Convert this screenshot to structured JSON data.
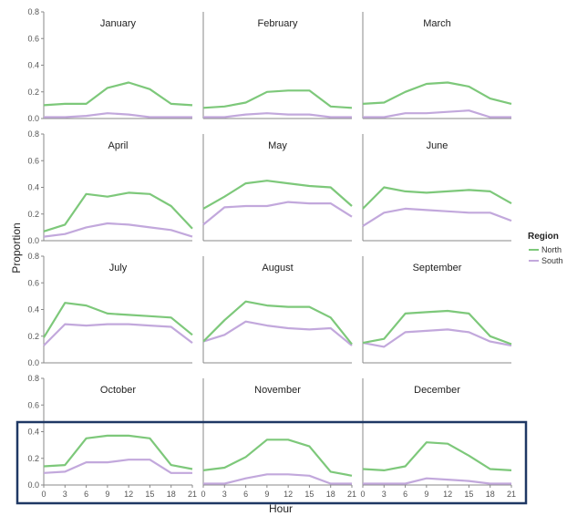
{
  "chart_data": {
    "type": "line",
    "xlabel": "Hour",
    "ylabel": "Proportion",
    "x": [
      0,
      3,
      6,
      9,
      12,
      15,
      18,
      21
    ],
    "x_ticks": [
      "0",
      "3",
      "6",
      "9",
      "12",
      "15",
      "18",
      "21"
    ],
    "ylim": [
      0,
      0.8
    ],
    "y_ticks": [
      "0.0",
      "0.2",
      "0.4",
      "0.6",
      "0.8"
    ],
    "legend": {
      "title": "Region",
      "placement": "right",
      "entries": [
        {
          "name": "North",
          "color": "#7dc87a"
        },
        {
          "name": "South",
          "color": "#c2a8dc"
        }
      ]
    },
    "highlight": {
      "rows": "last",
      "color": "#1f3864"
    },
    "panels": [
      {
        "title": "January",
        "North": [
          0.1,
          0.11,
          0.11,
          0.23,
          0.27,
          0.22,
          0.11,
          0.1
        ],
        "South": [
          0.01,
          0.01,
          0.02,
          0.04,
          0.03,
          0.01,
          0.01,
          0.01
        ]
      },
      {
        "title": "February",
        "North": [
          0.08,
          0.09,
          0.12,
          0.2,
          0.21,
          0.21,
          0.09,
          0.08
        ],
        "South": [
          0.01,
          0.01,
          0.03,
          0.04,
          0.03,
          0.03,
          0.01,
          0.01
        ]
      },
      {
        "title": "March",
        "North": [
          0.11,
          0.12,
          0.2,
          0.26,
          0.27,
          0.24,
          0.15,
          0.11
        ],
        "South": [
          0.01,
          0.01,
          0.04,
          0.04,
          0.05,
          0.06,
          0.01,
          0.01
        ]
      },
      {
        "title": "April",
        "North": [
          0.07,
          0.12,
          0.35,
          0.33,
          0.36,
          0.35,
          0.26,
          0.09
        ],
        "South": [
          0.03,
          0.05,
          0.1,
          0.13,
          0.12,
          0.1,
          0.08,
          0.03
        ]
      },
      {
        "title": "May",
        "North": [
          0.24,
          0.33,
          0.43,
          0.45,
          0.43,
          0.41,
          0.4,
          0.26
        ],
        "South": [
          0.12,
          0.25,
          0.26,
          0.26,
          0.29,
          0.28,
          0.28,
          0.18
        ]
      },
      {
        "title": "June",
        "North": [
          0.24,
          0.4,
          0.37,
          0.36,
          0.37,
          0.38,
          0.37,
          0.28
        ],
        "South": [
          0.11,
          0.21,
          0.24,
          0.23,
          0.22,
          0.21,
          0.21,
          0.15
        ]
      },
      {
        "title": "July",
        "North": [
          0.19,
          0.45,
          0.43,
          0.37,
          0.36,
          0.35,
          0.34,
          0.21
        ],
        "South": [
          0.13,
          0.29,
          0.28,
          0.29,
          0.29,
          0.28,
          0.27,
          0.15
        ]
      },
      {
        "title": "August",
        "North": [
          0.16,
          0.32,
          0.46,
          0.43,
          0.42,
          0.42,
          0.34,
          0.14
        ],
        "South": [
          0.16,
          0.21,
          0.31,
          0.28,
          0.26,
          0.25,
          0.26,
          0.13
        ]
      },
      {
        "title": "September",
        "North": [
          0.15,
          0.18,
          0.37,
          0.38,
          0.39,
          0.37,
          0.2,
          0.14
        ],
        "South": [
          0.15,
          0.12,
          0.23,
          0.24,
          0.25,
          0.23,
          0.16,
          0.13
        ]
      },
      {
        "title": "October",
        "North": [
          0.14,
          0.15,
          0.35,
          0.37,
          0.37,
          0.35,
          0.15,
          0.12
        ],
        "South": [
          0.09,
          0.1,
          0.17,
          0.17,
          0.19,
          0.19,
          0.09,
          0.09
        ]
      },
      {
        "title": "November",
        "North": [
          0.11,
          0.13,
          0.21,
          0.34,
          0.34,
          0.29,
          0.1,
          0.07
        ],
        "South": [
          0.01,
          0.01,
          0.05,
          0.08,
          0.08,
          0.07,
          0.01,
          0.01
        ]
      },
      {
        "title": "December",
        "North": [
          0.12,
          0.11,
          0.14,
          0.32,
          0.31,
          0.22,
          0.12,
          0.11
        ],
        "South": [
          0.01,
          0.01,
          0.01,
          0.05,
          0.04,
          0.03,
          0.01,
          0.01
        ]
      }
    ]
  }
}
